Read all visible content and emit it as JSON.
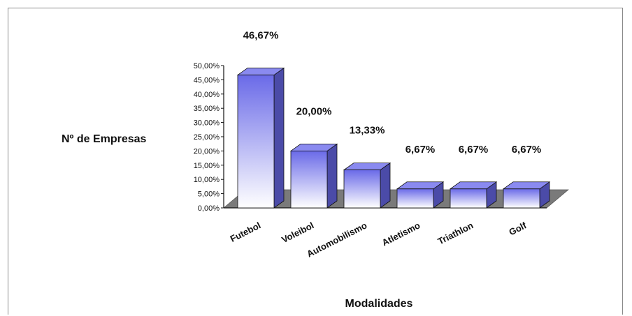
{
  "chart_data": {
    "type": "bar",
    "title": "",
    "xlabel": "Modalidades",
    "ylabel": "Nº de Empresas",
    "categories": [
      "Futebol",
      "Voleibol",
      "Automobilismo",
      "Atletismo",
      "Triathlon",
      "Golf"
    ],
    "values": [
      46.67,
      20.0,
      13.33,
      6.67,
      6.67,
      6.67
    ],
    "data_labels": [
      "46,67%",
      "20,00%",
      "13,33%",
      "6,67%",
      "6,67%",
      "6,67%"
    ],
    "y_ticks": [
      "0,00%",
      "5,00%",
      "10,00%",
      "15,00%",
      "20,00%",
      "25,00%",
      "30,00%",
      "35,00%",
      "40,00%",
      "45,00%",
      "50,00%"
    ],
    "ylim": [
      0,
      50
    ],
    "grid": false,
    "legend": "none",
    "style": "3d",
    "colors": {
      "bar_top": "#6a6ae8",
      "bar_bottom": "#ffffff",
      "bar_side": "#4b4ba8",
      "bar_top_face": "#8a8af0",
      "floor": "#7a7a7a",
      "outline": "#111111"
    }
  }
}
